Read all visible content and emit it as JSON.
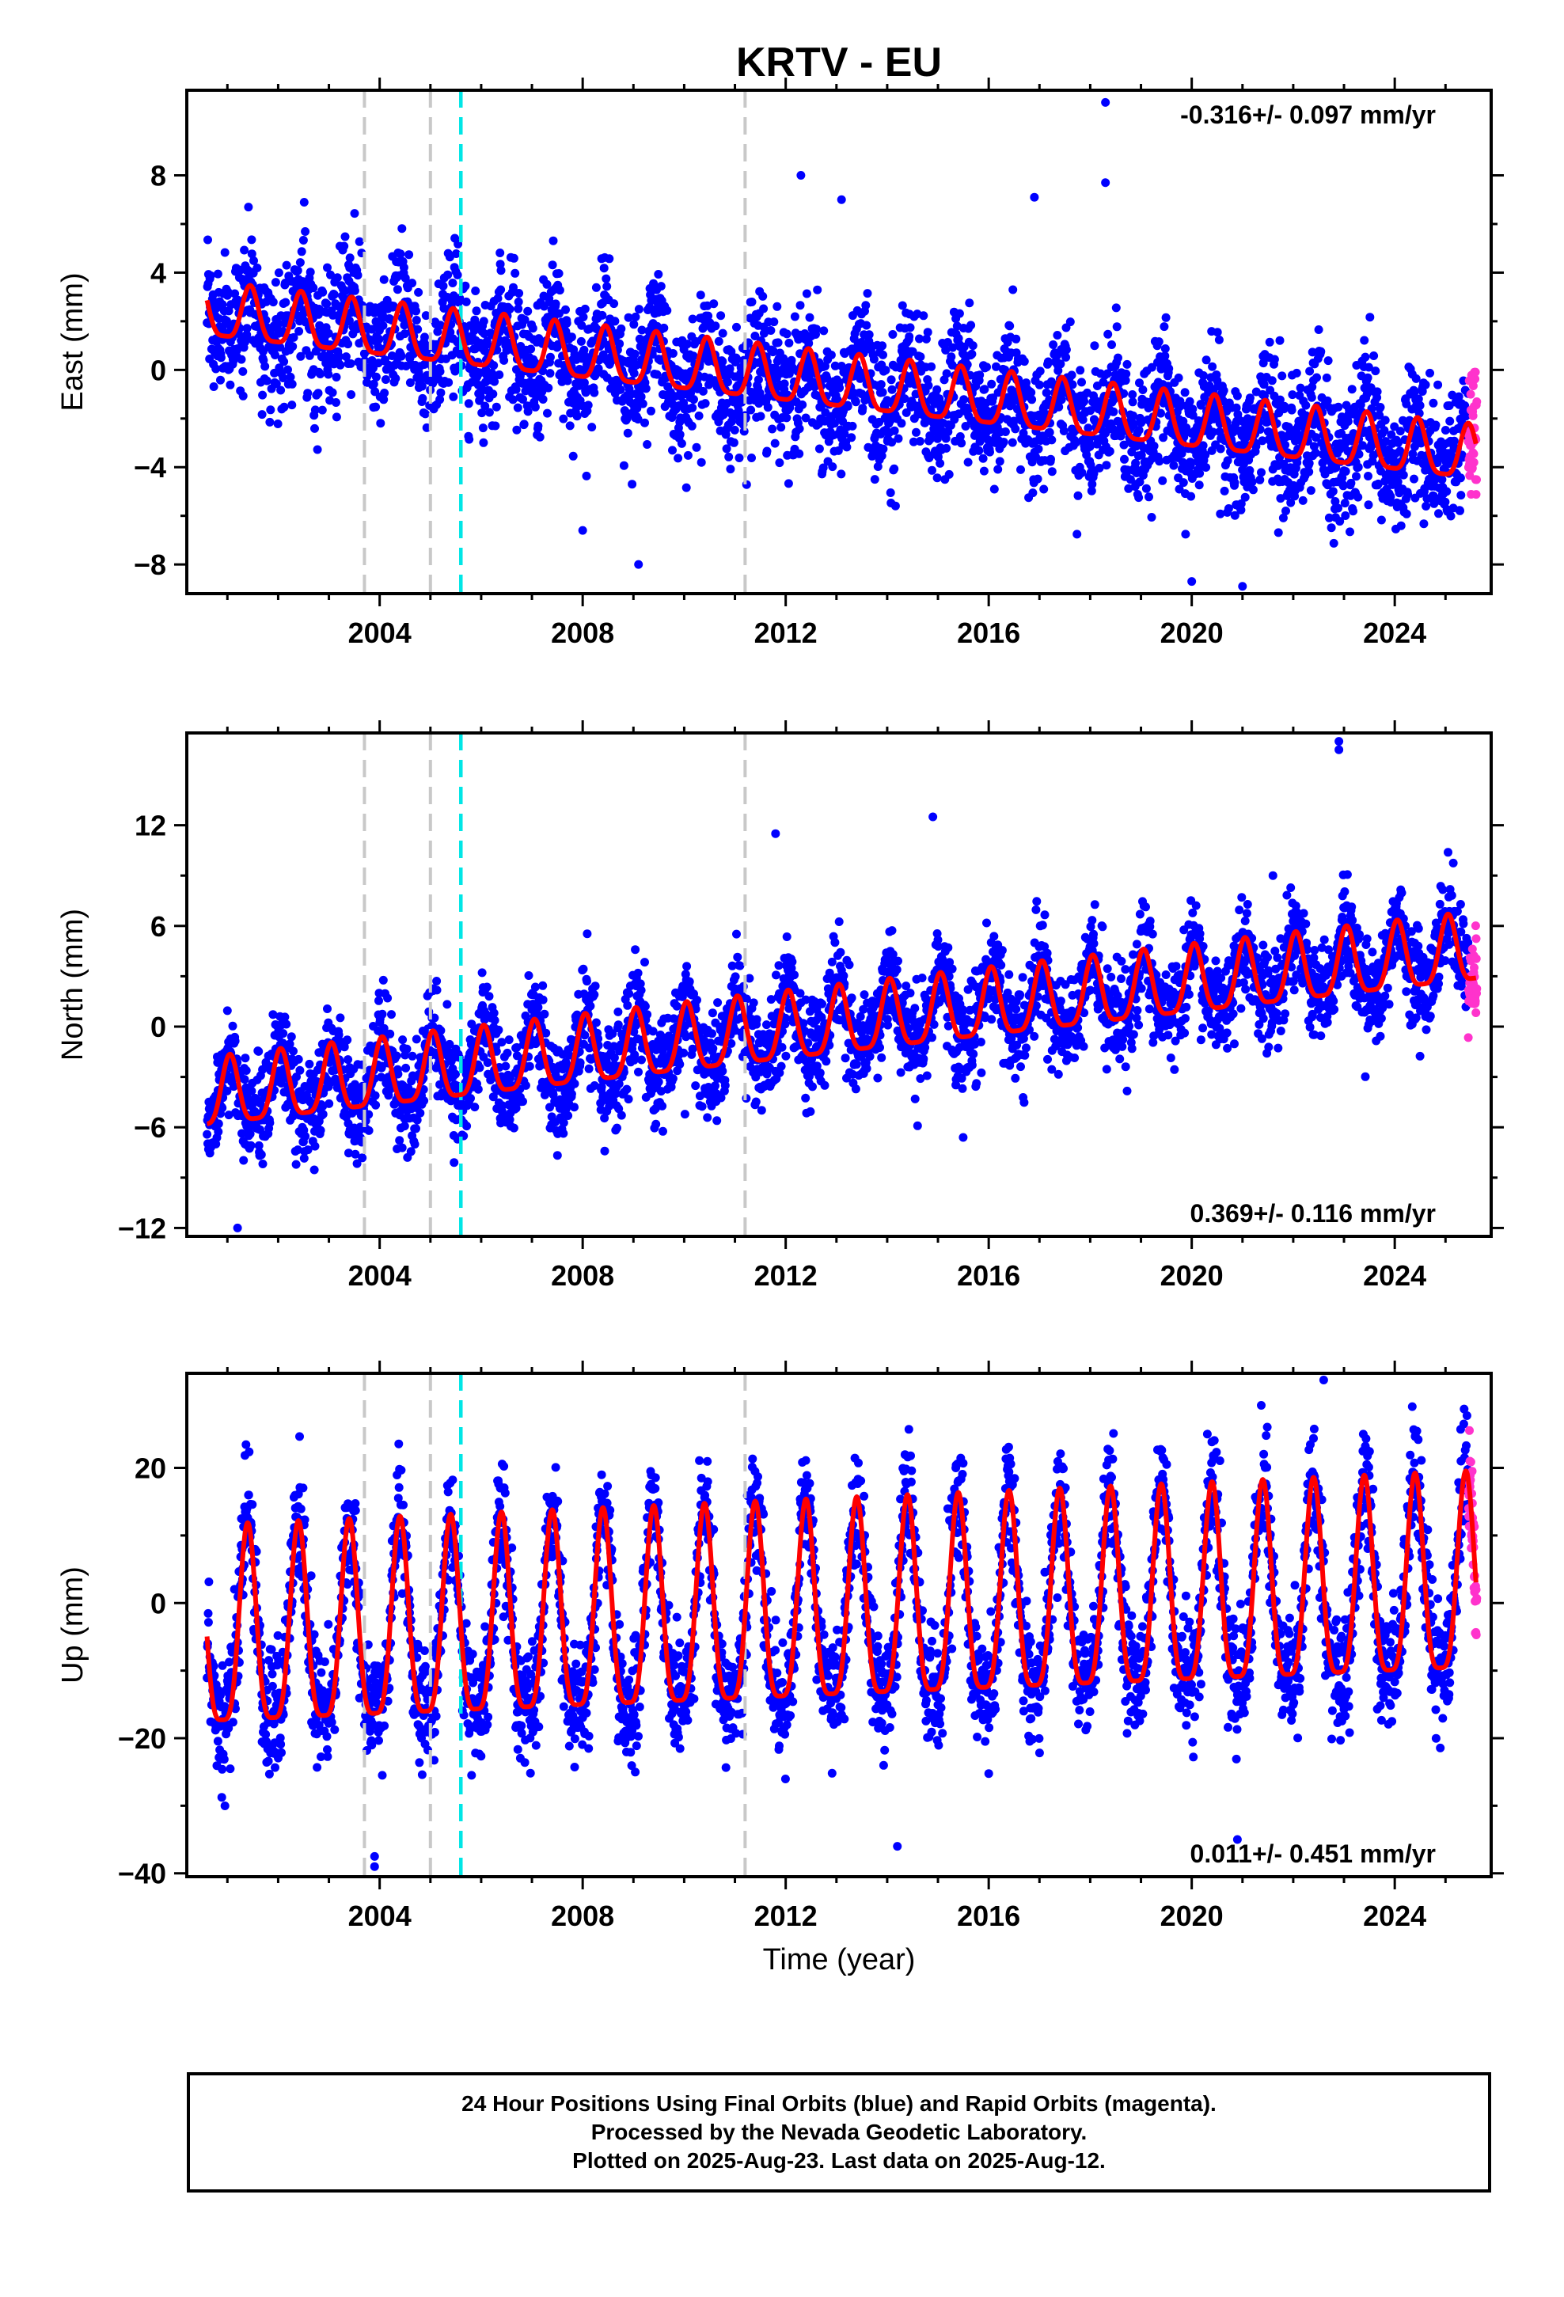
{
  "title": "KRTV - EU",
  "xlabel": "Time (year)",
  "colors": {
    "final_orbits": "#0000ff",
    "rapid_orbits": "#ff33cc",
    "model": "#ff0000",
    "equipment_change": "#c8c8c8",
    "earthquake": "#00e6e6",
    "frame": "#000000"
  },
  "caption": {
    "line1": "24 Hour Positions Using Final Orbits (blue) and Rapid Orbits (magenta).",
    "line2": "Processed by the Nevada Geodetic Laboratory.",
    "line3": "Plotted on 2025-Aug-23. Last data on 2025-Aug-12."
  },
  "chart_data": [
    {
      "type": "scatter",
      "component": "east",
      "ylabel": "East (mm)",
      "rate_label": "-0.316+/- 0.097 mm/yr",
      "rate_label_position": "top-right",
      "xlim": [
        2000.2,
        2025.9
      ],
      "ylim": [
        -9.2,
        11.5
      ],
      "x_ticks": [
        2004,
        2008,
        2012,
        2016,
        2020,
        2024
      ],
      "y_ticks": [
        -8,
        -4,
        0,
        4,
        8
      ],
      "data_span": [
        2000.6,
        2025.6
      ],
      "rapid_span": [
        2025.45,
        2025.62
      ],
      "trend_at_start": 2.3,
      "trend_at_end": -3.6,
      "annual_amplitude": 1.1,
      "seasonal_phase": 0.45,
      "scatter_sigma": 1.4,
      "equipment_changes": [
        2003.7,
        2005.0,
        2011.2
      ],
      "earthquakes": [
        2005.6
      ],
      "outliers": [
        [
          2018.3,
          11.0
        ],
        [
          2018.3,
          7.7
        ],
        [
          2012.3,
          8.0
        ],
        [
          2016.9,
          7.1
        ],
        [
          2013.1,
          7.0
        ],
        [
          2020.0,
          -8.7
        ],
        [
          2021.0,
          -8.9
        ],
        [
          2009.1,
          -8.0
        ],
        [
          2008.0,
          -6.6
        ]
      ]
    },
    {
      "type": "scatter",
      "component": "north",
      "ylabel": "North (mm)",
      "rate_label": "0.369+/- 0.116 mm/yr",
      "rate_label_position": "bottom-right",
      "xlim": [
        2000.2,
        2025.9
      ],
      "ylim": [
        -12.5,
        17.5
      ],
      "x_ticks": [
        2004,
        2008,
        2012,
        2016,
        2020,
        2024
      ],
      "y_ticks": [
        -12,
        -6,
        0,
        6,
        12
      ],
      "data_span": [
        2000.6,
        2025.6
      ],
      "rapid_span": [
        2025.45,
        2025.62
      ],
      "trend_at_start": -4.3,
      "trend_at_end": 4.4,
      "annual_amplitude": 2.0,
      "seasonal_phase": 0.05,
      "scatter_sigma": 1.5,
      "equipment_changes": [
        2003.7,
        2005.0,
        2011.2
      ],
      "earthquakes": [
        2005.6
      ],
      "outliers": [
        [
          2022.9,
          17.0
        ],
        [
          2022.9,
          16.5
        ],
        [
          2014.9,
          12.5
        ],
        [
          2011.8,
          11.5
        ],
        [
          2001.2,
          -12.0
        ],
        [
          2021.6,
          9.0
        ]
      ]
    },
    {
      "type": "scatter",
      "component": "up",
      "ylabel": "Up (mm)",
      "rate_label": "0.011+/- 0.451 mm/yr",
      "rate_label_position": "bottom-right",
      "xlim": [
        2000.2,
        2025.9
      ],
      "ylim": [
        -40.5,
        34
      ],
      "x_ticks": [
        2004,
        2008,
        2012,
        2016,
        2020,
        2024
      ],
      "y_ticks": [
        -40,
        -20,
        0,
        20
      ],
      "data_span": [
        2000.6,
        2025.6
      ],
      "rapid_span": [
        2025.45,
        2025.62
      ],
      "trend_at_start": -6.5,
      "trend_at_end": 1.5,
      "annual_amplitude": 14.5,
      "seasonal_phase": 0.4,
      "scatter_sigma": 4.5,
      "equipment_changes": [
        2003.7,
        2005.0,
        2011.2
      ],
      "earthquakes": [
        2005.6
      ],
      "outliers": [
        [
          2022.6,
          33.0
        ],
        [
          2003.9,
          -39.0
        ],
        [
          2003.9,
          -37.5
        ],
        [
          2014.2,
          -36.0
        ],
        [
          2020.9,
          -35.0
        ]
      ]
    }
  ]
}
